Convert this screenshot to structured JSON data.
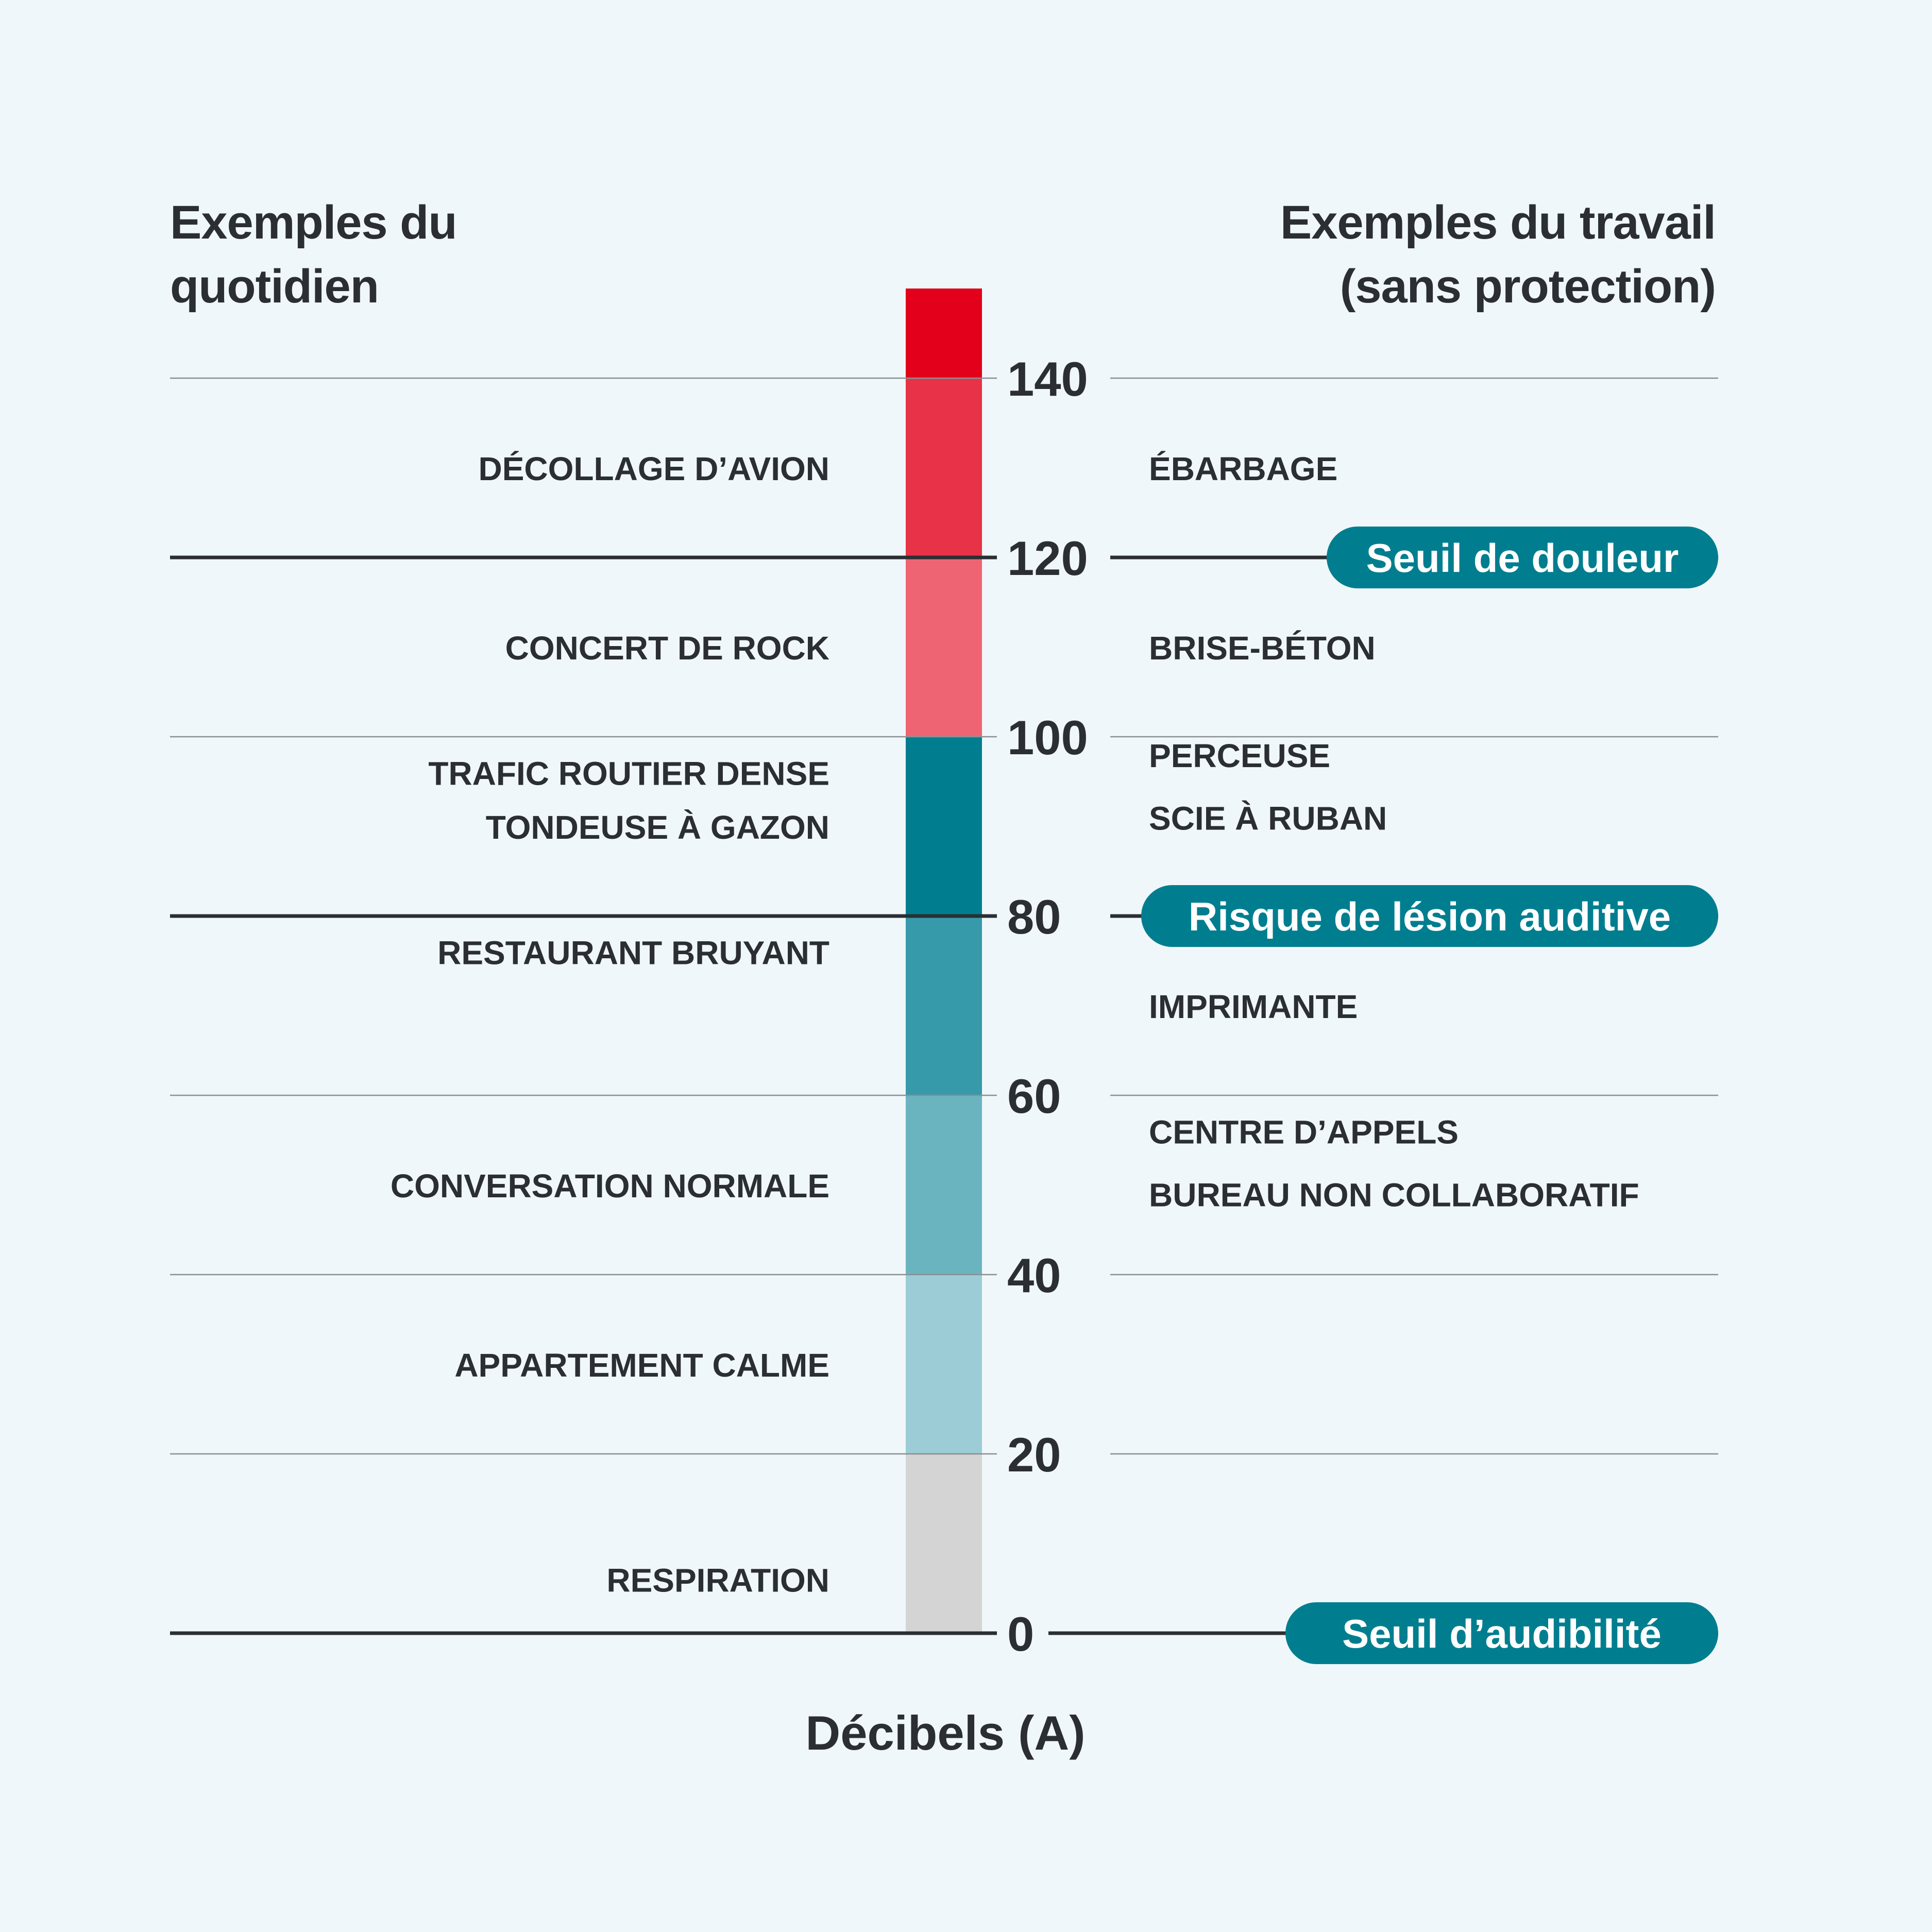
{
  "chart_data": {
    "type": "bar",
    "left_title": [
      "Exemples du",
      "quotidien"
    ],
    "right_title": [
      "Exemples du travail",
      "(sans protection)"
    ],
    "xlabel": "Décibels (A)",
    "ylim": [
      0,
      140
    ],
    "ticks": [
      0,
      20,
      40,
      60,
      80,
      100,
      120,
      140
    ],
    "segments": [
      {
        "from": 0,
        "to": 20,
        "color": "#d4d4d4"
      },
      {
        "from": 20,
        "to": 40,
        "color": "#9ccdd6"
      },
      {
        "from": 40,
        "to": 60,
        "color": "#6ab4c0"
      },
      {
        "from": 60,
        "to": 80,
        "color": "#369aab"
      },
      {
        "from": 80,
        "to": 100,
        "color": "#007e8f"
      },
      {
        "from": 100,
        "to": 120,
        "color": "#ef6473"
      },
      {
        "from": 120,
        "to": 140,
        "color": "#e73247"
      },
      {
        "from": 140,
        "to": 150,
        "color": "#e2001a"
      }
    ],
    "thresholds": [
      {
        "value": 120,
        "label": "Seuil de douleur"
      },
      {
        "value": 80,
        "label": "Risque de lésion auditive"
      },
      {
        "value": 0,
        "label": "Seuil d’audibilité"
      }
    ],
    "everyday_examples": [
      {
        "label": "DÉCOLLAGE D’AVION",
        "value": 130
      },
      {
        "label": "CONCERT DE ROCK",
        "value": 110
      },
      {
        "label": "TRAFIC ROUTIER DENSE",
        "value": 96
      },
      {
        "label": "TONDEUSE À GAZON",
        "value": 90
      },
      {
        "label": "RESTAURANT BRUYANT",
        "value": 76
      },
      {
        "label": "CONVERSATION NORMALE",
        "value": 50
      },
      {
        "label": "APPARTEMENT CALME",
        "value": 30
      },
      {
        "label": "RESPIRATION",
        "value": 6
      }
    ],
    "work_examples": [
      {
        "label": "ÉBARBAGE",
        "value": 130
      },
      {
        "label": "BRISE-BÉTON",
        "value": 110
      },
      {
        "label": "PERCEUSE",
        "value": 98
      },
      {
        "label": "SCIE À RUBAN",
        "value": 91
      },
      {
        "label": "IMPRIMANTE",
        "value": 70
      },
      {
        "label": "CENTRE D’APPELS",
        "value": 56
      },
      {
        "label": "BUREAU NON COLLABORATIF",
        "value": 49
      }
    ],
    "colors": {
      "background": "#f0f7fa",
      "text": "#2b2e33",
      "badge": "#007e8f",
      "badge_text": "#ffffff",
      "gridline": "#8a8f94"
    }
  }
}
